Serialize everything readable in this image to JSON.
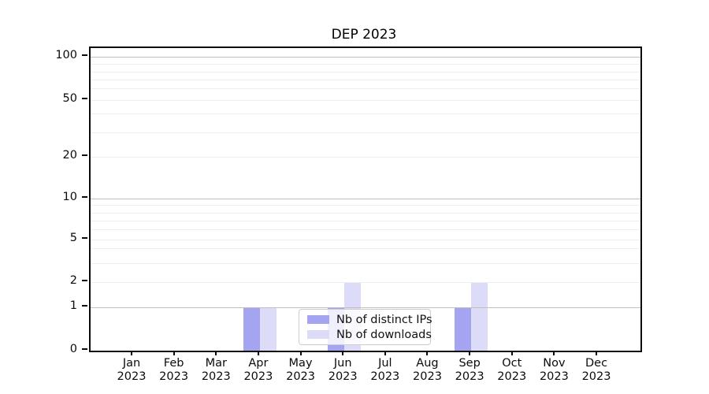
{
  "chart_data": {
    "type": "bar",
    "title": "DEP 2023",
    "categories": [
      "Jan 2023",
      "Feb 2023",
      "Mar 2023",
      "Apr 2023",
      "May 2023",
      "Jun 2023",
      "Jul 2023",
      "Aug 2023",
      "Sep 2023",
      "Oct 2023",
      "Nov 2023",
      "Dec 2023"
    ],
    "series": [
      {
        "name": "Nb of distinct IPs",
        "color": "#a4a4f0",
        "values": [
          0,
          0,
          0,
          1,
          0,
          1,
          0,
          0,
          1,
          0,
          0,
          0
        ]
      },
      {
        "name": "Nb of downloads",
        "color": "#dcdcf8",
        "values": [
          0,
          0,
          0,
          1,
          0,
          2,
          0,
          0,
          2,
          0,
          0,
          0
        ]
      }
    ],
    "yticks": [
      0,
      1,
      2,
      5,
      10,
      20,
      50,
      100
    ],
    "yscale": "symlog",
    "ylim": [
      0,
      115
    ],
    "xlabel": "",
    "ylabel": "",
    "grid": "horizontal, major and minor",
    "legend_position": "lower center"
  }
}
